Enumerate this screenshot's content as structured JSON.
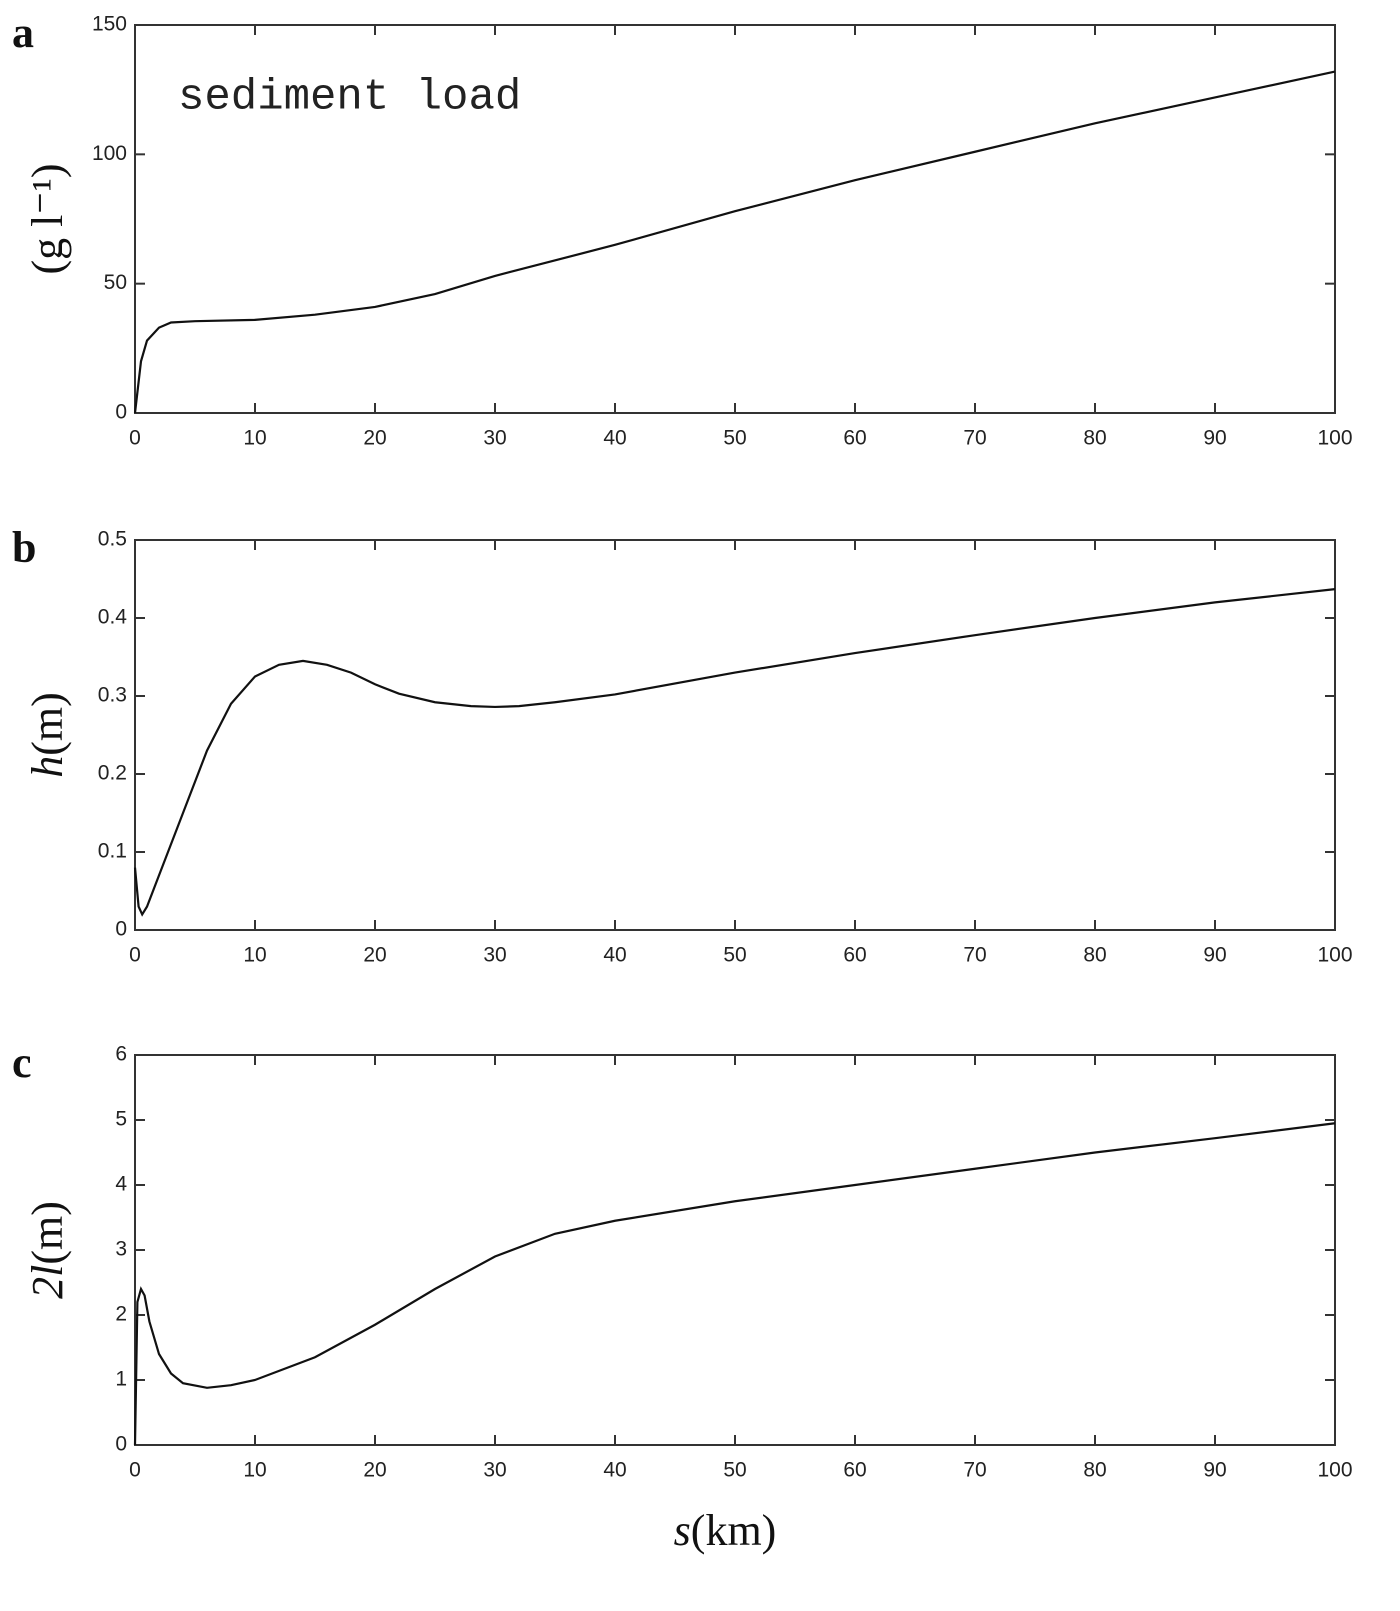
{
  "chart_data": [
    {
      "type": "line",
      "panel_label": "a",
      "annotation": "sediment load",
      "ylabel": {
        "unit": "(g l⁻¹)"
      },
      "x": [
        0,
        0.5,
        1,
        2,
        3,
        5,
        10,
        15,
        20,
        25,
        30,
        40,
        50,
        60,
        70,
        80,
        90,
        100
      ],
      "series": [
        {
          "color": "#111111",
          "values": [
            0,
            20,
            28,
            33,
            35,
            35.5,
            36,
            38,
            41,
            46,
            53,
            65,
            78,
            90,
            101,
            112,
            122,
            132
          ]
        }
      ],
      "xlim": [
        0,
        100
      ],
      "xticks": [
        0,
        10,
        20,
        30,
        40,
        50,
        60,
        70,
        80,
        90,
        100
      ],
      "ylim": [
        0,
        150
      ],
      "yticks": [
        0,
        50,
        100,
        150
      ]
    },
    {
      "type": "line",
      "panel_label": "b",
      "ylabel": {
        "symbol": "h",
        "unit": "(m)"
      },
      "x": [
        0,
        0.3,
        0.6,
        1,
        2,
        4,
        6,
        8,
        10,
        12,
        14,
        16,
        18,
        20,
        22,
        25,
        28,
        30,
        32,
        35,
        40,
        50,
        60,
        70,
        80,
        90,
        100
      ],
      "series": [
        {
          "color": "#111111",
          "values": [
            0.08,
            0.03,
            0.02,
            0.03,
            0.07,
            0.15,
            0.23,
            0.29,
            0.325,
            0.34,
            0.345,
            0.34,
            0.33,
            0.315,
            0.303,
            0.292,
            0.287,
            0.286,
            0.287,
            0.292,
            0.302,
            0.33,
            0.355,
            0.378,
            0.4,
            0.42,
            0.437
          ]
        }
      ],
      "xlim": [
        0,
        100
      ],
      "xticks": [
        0,
        10,
        20,
        30,
        40,
        50,
        60,
        70,
        80,
        90,
        100
      ],
      "ylim": [
        0,
        0.5
      ],
      "yticks": [
        0,
        0.1,
        0.2,
        0.3,
        0.4,
        0.5
      ]
    },
    {
      "type": "line",
      "panel_label": "c",
      "ylabel": {
        "symbol": "2l",
        "unit": "(m)"
      },
      "xlabel": {
        "symbol": "s",
        "unit": "(km)"
      },
      "x": [
        0,
        0.2,
        0.5,
        0.8,
        1.2,
        2,
        3,
        4,
        6,
        8,
        10,
        15,
        20,
        25,
        30,
        35,
        40,
        50,
        60,
        70,
        80,
        90,
        100
      ],
      "series": [
        {
          "color": "#111111",
          "values": [
            0,
            2.2,
            2.4,
            2.3,
            1.9,
            1.4,
            1.1,
            0.95,
            0.88,
            0.92,
            1.0,
            1.35,
            1.85,
            2.4,
            2.9,
            3.25,
            3.45,
            3.75,
            4.0,
            4.25,
            4.5,
            4.72,
            4.95
          ]
        }
      ],
      "xlim": [
        0,
        100
      ],
      "xticks": [
        0,
        10,
        20,
        30,
        40,
        50,
        60,
        70,
        80,
        90,
        100
      ],
      "ylim": [
        0,
        6
      ],
      "yticks": [
        0,
        1,
        2,
        3,
        4,
        5,
        6
      ]
    }
  ]
}
